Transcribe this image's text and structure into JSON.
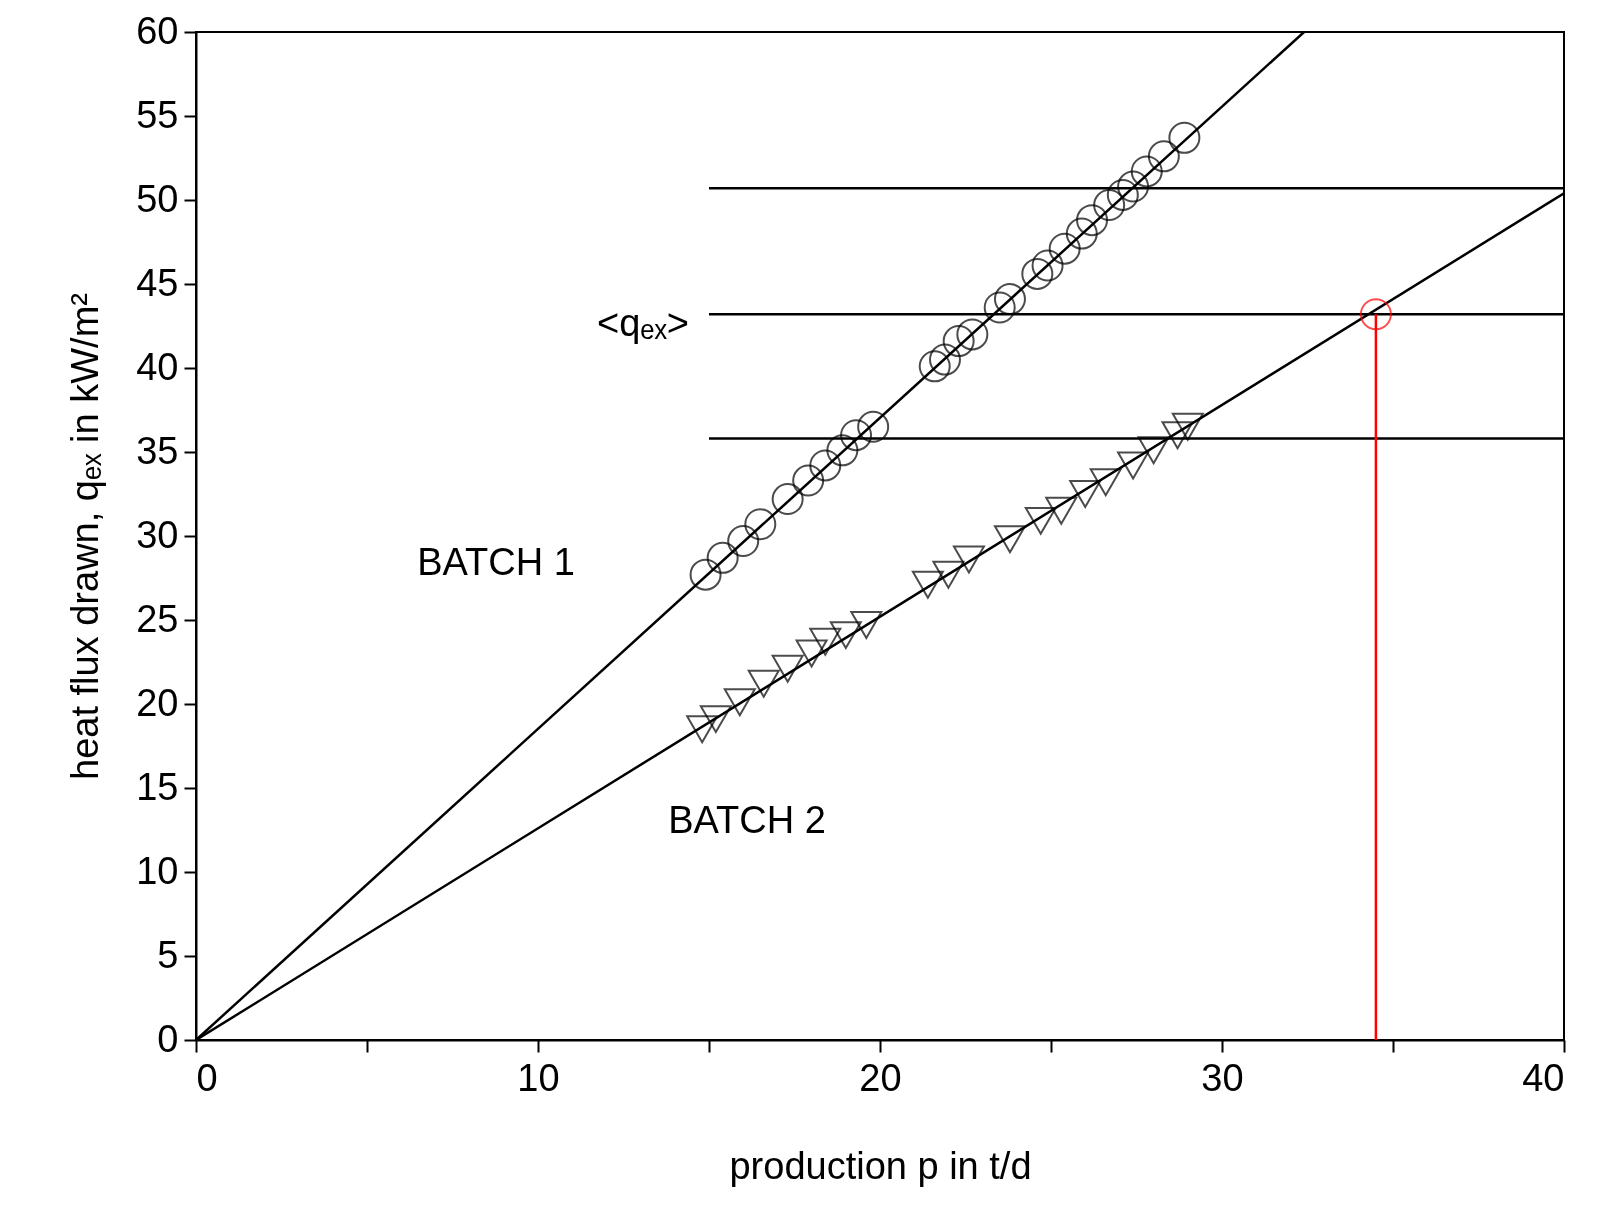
{
  "chart_data": {
    "type": "scatter",
    "xlabel": "production p in t/d",
    "ylabel": "heat flux drawn, qₑₓ in kW/m²",
    "xlim": [
      0,
      40
    ],
    "ylim": [
      0,
      60
    ],
    "xticks": [
      0,
      {
        "value": 5,
        "label": null
      },
      10,
      {
        "value": 15,
        "label": null
      },
      20,
      {
        "value": 25,
        "label": null
      },
      30,
      {
        "value": 35,
        "label": null
      },
      40
    ],
    "yticks": [
      0,
      5,
      10,
      15,
      20,
      25,
      30,
      35,
      40,
      45,
      50,
      55,
      60
    ],
    "grid": false,
    "annotations": [
      "BATCH 1",
      "BATCH 2",
      "<qₑₓ>"
    ],
    "series": [
      {
        "type": "line",
        "marker": "none",
        "color": "#000000",
        "x": [
          0,
          32.4
        ],
        "values": [
          0,
          60
        ]
      },
      {
        "type": "line",
        "marker": "none",
        "color": "#000000",
        "x": [
          0,
          40
        ],
        "values": [
          0,
          50.4
        ]
      },
      {
        "type": "line",
        "marker": "none",
        "color": "#000000",
        "x": [
          15,
          40
        ],
        "values": [
          50.7,
          50.7
        ]
      },
      {
        "type": "line",
        "marker": "none",
        "color": "#000000",
        "x": [
          15,
          40
        ],
        "values": [
          43.2,
          43.2
        ]
      },
      {
        "type": "line",
        "marker": "none",
        "color": "#000000",
        "x": [
          15,
          40
        ],
        "values": [
          35.8,
          35.8
        ]
      },
      {
        "marker": "circle",
        "color": "#000000",
        "x": [
          14.9,
          15.4,
          16.0,
          16.5,
          17.3,
          17.9,
          18.4,
          18.9,
          19.3,
          19.8,
          21.6,
          21.9,
          22.3,
          22.7,
          23.5,
          23.8,
          24.6,
          24.9,
          25.4,
          25.9,
          26.2,
          26.7,
          27.1,
          27.4,
          27.8,
          28.3,
          28.9
        ],
        "values": [
          27.7,
          28.7,
          29.7,
          30.7,
          32.2,
          33.3,
          34.2,
          35.1,
          36.0,
          36.5,
          40.1,
          40.5,
          41.6,
          42.0,
          43.6,
          44.1,
          45.6,
          46.1,
          47.1,
          48.0,
          48.8,
          49.7,
          50.3,
          50.8,
          51.7,
          52.6,
          53.7
        ]
      },
      {
        "marker": "triangle",
        "color": "#000000",
        "x": [
          14.8,
          15.2,
          15.9,
          16.6,
          17.3,
          18.0,
          18.4,
          19.0,
          19.6,
          21.4,
          22.0,
          22.6,
          23.8,
          24.7,
          25.3,
          26.0,
          26.6,
          27.4,
          28.0,
          28.7,
          29.0
        ],
        "values": [
          18.5,
          19.1,
          20.1,
          21.2,
          22.1,
          23.0,
          23.7,
          24.1,
          24.7,
          27.1,
          27.7,
          28.6,
          29.8,
          30.9,
          31.5,
          32.5,
          33.2,
          34.2,
          35.1,
          36.0,
          36.5
        ]
      },
      {
        "type": "line",
        "marker": "none",
        "color": "#ff0000",
        "x": [
          34.5,
          34.5
        ],
        "values": [
          43.2,
          0
        ]
      },
      {
        "marker": "circle",
        "color": "#ff0000",
        "x": [
          34.5
        ],
        "values": [
          43.2
        ]
      }
    ]
  }
}
